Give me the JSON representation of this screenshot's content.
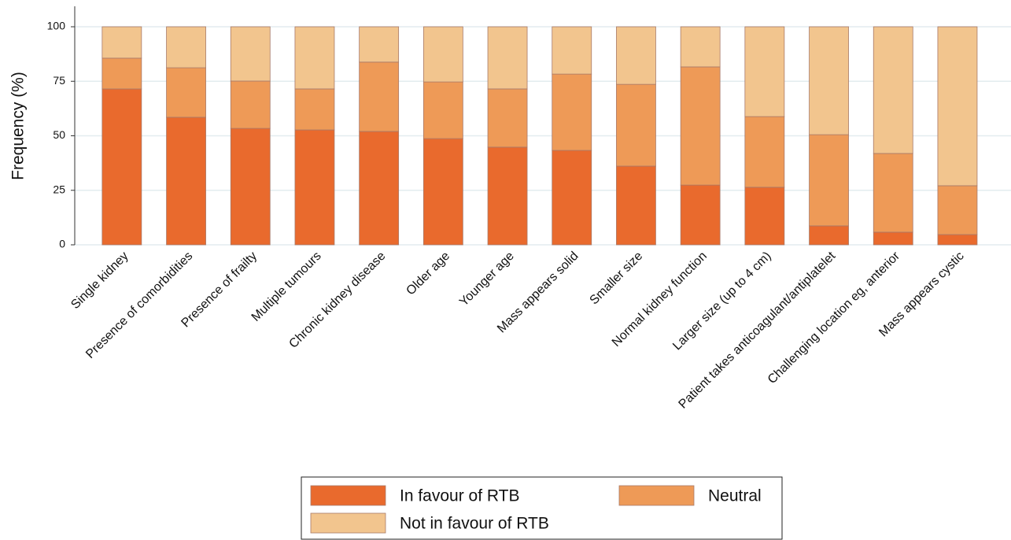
{
  "chart_data": {
    "type": "stacked_bar",
    "y_label": "Frequency (%)",
    "categories": [
      "Single kidney",
      "Presence of comorbidities",
      "Presence of frailty",
      "Multiple tumours",
      "Chronic kidney disease",
      "Older age",
      "Younger age",
      "Mass appears solid",
      "Smaller size",
      "Normal kidney function",
      "Larger size (up to 4 cm)",
      "Patient takes anticoagulant/antiplatelet",
      "Challenging location eg, anterior",
      "Mass appears cystic"
    ],
    "series": [
      {
        "name": "In favour of RTB",
        "color": "#e96a2d",
        "values": [
          71.5,
          58.5,
          53.4,
          52.7,
          52.0,
          48.7,
          44.8,
          43.3,
          36.1,
          27.4,
          26.4,
          8.7,
          5.8,
          4.7
        ]
      },
      {
        "name": "Neutral",
        "color": "#ee9a57",
        "values": [
          14.1,
          22.7,
          21.7,
          18.8,
          31.8,
          26.0,
          26.7,
          35.0,
          37.5,
          54.2,
          32.4,
          41.8,
          36.1,
          22.4
        ]
      },
      {
        "name": "Not in favour of RTB",
        "color": "#f2c58e",
        "values": [
          14.4,
          18.8,
          24.9,
          28.5,
          16.2,
          25.3,
          28.5,
          21.7,
          26.4,
          18.4,
          41.2,
          49.5,
          58.1,
          72.9
        ]
      }
    ],
    "ylim": [
      0,
      110
    ],
    "yticks": [
      0,
      25,
      50,
      75,
      100
    ],
    "grid": true,
    "legend": "bottom"
  }
}
